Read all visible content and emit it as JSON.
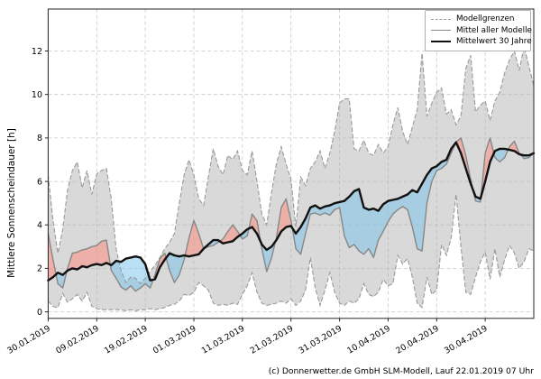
{
  "figure": {
    "ylabel": "Mittlere Sonnenscheindauer [h]",
    "caption": "(c) Donnerwetter.de GmbH SLM-Modell, Lauf 22.01.2019 07 Uhr",
    "legend": {
      "position": "upper right",
      "items": [
        {
          "label": "Modellgrenzen",
          "style": "dashed-gray"
        },
        {
          "label": "Mittel aller Modelle",
          "style": "solid-gray"
        },
        {
          "label": "Mittelwert 30 Jahre",
          "style": "solid-black-thick"
        }
      ]
    }
  },
  "colors": {
    "background": "#ffffff",
    "grid": "#c9c9c9",
    "band_fill": "rgba(179,179,179,0.5)",
    "below_normal_fill": "rgba(118,194,236,0.5)",
    "above_normal_fill": "rgba(255,138,122,0.52)",
    "bounds_line": "#999999",
    "model_mean_line": "#878787",
    "climate_mean_line": "#111111",
    "spine": "#262626",
    "legend_border": "#b0b0b0"
  },
  "chart_data": {
    "type": "line",
    "title": "",
    "xlabel": "",
    "ylabel": "Mittlere Sonnenscheindauer [h]",
    "grid": true,
    "legend_position": "upper right",
    "x_unit": "Tage ab 30.01.2019 (daily values)",
    "xlim": [
      0,
      100
    ],
    "ylim": [
      -0.3,
      13.93
    ],
    "y_ticks": [
      0,
      2,
      4,
      6,
      8,
      10,
      12
    ],
    "x_tick_days": [
      0,
      10,
      20,
      30,
      40,
      50,
      60,
      70,
      80,
      90
    ],
    "x_tick_labels": [
      "30.01.2019",
      "09.02.2019",
      "19.02.2019",
      "01.03.2019",
      "11.03.2019",
      "21.03.2019",
      "31.03.2019",
      "10.04.2019",
      "20.04.2019",
      "30.04.2019"
    ],
    "fills": [
      {
        "name": "Modellgrenzen-Band",
        "between": [
          "upper_bound",
          "lower_bound"
        ],
        "color_key": "band_fill"
      },
      {
        "name": "Modelle unter 30J-Mittel",
        "between": [
          "climate_mean_30y",
          "model_mean"
        ],
        "where": "model_mean < climate_mean_30y",
        "color_key": "below_normal_fill"
      },
      {
        "name": "Modelle über 30J-Mittel",
        "between": [
          "model_mean",
          "climate_mean_30y"
        ],
        "where": "model_mean > climate_mean_30y",
        "color_key": "above_normal_fill"
      }
    ],
    "series": [
      {
        "name": "Modellgrenzen (obere Grenze)",
        "role": "upper_bound",
        "line": "dashed",
        "values": [
          6.3,
          4.2,
          2.7,
          3.8,
          5.6,
          6.5,
          6.9,
          5.7,
          6.5,
          5.4,
          6.35,
          6.5,
          6.6,
          5.2,
          2.9,
          1.9,
          1.35,
          1.6,
          1.55,
          1.3,
          1.55,
          1.85,
          2.15,
          2.5,
          2.9,
          3.2,
          3.6,
          5.0,
          6.3,
          7.0,
          6.3,
          5.2,
          4.9,
          6.2,
          7.5,
          6.7,
          6.3,
          7.2,
          7.0,
          7.4,
          6.5,
          6.3,
          7.4,
          6.0,
          4.5,
          4.0,
          5.5,
          6.8,
          7.6,
          6.8,
          6.1,
          3.9,
          6.2,
          5.8,
          6.6,
          6.9,
          7.4,
          6.6,
          7.3,
          8.3,
          9.6,
          9.8,
          9.8,
          7.5,
          7.4,
          7.9,
          7.3,
          7.2,
          7.7,
          7.3,
          7.6,
          8.6,
          9.4,
          8.3,
          7.7,
          8.5,
          9.3,
          11.9,
          9.0,
          9.6,
          10.1,
          10.3,
          9.1,
          9.3,
          8.6,
          9.0,
          11.2,
          11.8,
          9.2,
          9.5,
          9.7,
          8.8,
          9.7,
          10.1,
          11.0,
          11.6,
          12.0,
          11.1,
          12.2,
          11.3,
          10.4
        ]
      },
      {
        "name": "Modellgrenzen (untere Grenze)",
        "role": "lower_bound",
        "line": "dashed",
        "values": [
          0.5,
          0.25,
          0.2,
          0.85,
          0.45,
          0.6,
          0.8,
          0.5,
          0.9,
          0.25,
          0.15,
          0.1,
          0.1,
          0.1,
          0.1,
          0.1,
          0.05,
          0.1,
          0.05,
          0.1,
          0.1,
          0.15,
          0.1,
          0.15,
          0.2,
          0.3,
          0.35,
          0.5,
          0.8,
          0.75,
          0.9,
          1.35,
          1.2,
          1.0,
          0.4,
          0.3,
          0.35,
          0.3,
          0.4,
          0.35,
          0.8,
          1.2,
          1.8,
          0.9,
          0.4,
          0.3,
          0.35,
          0.4,
          0.5,
          0.4,
          0.6,
          0.3,
          0.5,
          1.0,
          2.5,
          1.1,
          0.3,
          1.0,
          1.8,
          0.9,
          0.4,
          0.3,
          0.5,
          0.4,
          0.6,
          1.3,
          0.8,
          0.7,
          0.9,
          1.5,
          1.2,
          1.3,
          2.6,
          2.2,
          2.45,
          1.6,
          0.4,
          0.2,
          1.6,
          0.8,
          1.0,
          3.1,
          2.6,
          3.4,
          5.4,
          3.0,
          0.9,
          0.8,
          1.6,
          2.3,
          2.75,
          1.5,
          2.9,
          1.6,
          2.4,
          3.05,
          2.7,
          2.0,
          2.3,
          2.9,
          2.8
        ]
      },
      {
        "name": "Mittel aller Modelle",
        "role": "model_mean",
        "line": "solid-gray",
        "values": [
          3.6,
          2.4,
          1.3,
          1.1,
          2.0,
          2.7,
          2.75,
          2.85,
          2.9,
          3.0,
          3.05,
          3.25,
          3.3,
          1.9,
          1.55,
          1.15,
          1.0,
          1.2,
          0.95,
          1.1,
          1.3,
          1.1,
          1.7,
          2.45,
          2.7,
          1.9,
          1.35,
          1.7,
          2.4,
          3.4,
          4.2,
          3.6,
          2.9,
          3.0,
          3.05,
          3.2,
          3.35,
          3.7,
          4.0,
          3.7,
          3.35,
          3.5,
          4.5,
          4.2,
          2.9,
          1.85,
          2.5,
          3.4,
          4.8,
          5.2,
          4.2,
          2.9,
          2.65,
          3.6,
          4.5,
          4.55,
          4.45,
          4.55,
          4.45,
          4.7,
          4.8,
          3.5,
          2.95,
          3.1,
          2.8,
          2.65,
          2.9,
          2.5,
          3.3,
          3.7,
          4.15,
          4.5,
          4.7,
          4.85,
          4.7,
          3.9,
          2.9,
          2.8,
          5.0,
          6.0,
          6.5,
          6.6,
          6.8,
          7.3,
          7.8,
          8.0,
          7.2,
          6.1,
          5.1,
          5.05,
          7.3,
          8.0,
          7.1,
          6.9,
          7.1,
          7.6,
          7.85,
          7.3,
          7.05,
          7.1,
          7.3
        ]
      },
      {
        "name": "Mittelwert 30 Jahre",
        "role": "climate_mean_30y",
        "line": "solid-black-thick",
        "values": [
          1.45,
          1.6,
          1.8,
          1.7,
          1.9,
          2.0,
          1.95,
          2.1,
          2.05,
          2.15,
          2.2,
          2.15,
          2.25,
          2.15,
          2.35,
          2.3,
          2.45,
          2.5,
          2.55,
          2.5,
          2.2,
          1.45,
          1.5,
          2.05,
          2.4,
          2.7,
          2.6,
          2.55,
          2.6,
          2.55,
          2.6,
          2.65,
          2.9,
          3.1,
          3.3,
          3.3,
          3.15,
          3.2,
          3.25,
          3.45,
          3.6,
          3.8,
          3.9,
          3.6,
          3.1,
          2.85,
          3.0,
          3.3,
          3.7,
          3.9,
          3.95,
          3.6,
          3.9,
          4.3,
          4.8,
          4.9,
          4.75,
          4.85,
          4.9,
          5.0,
          5.05,
          5.1,
          5.3,
          5.55,
          5.65,
          4.8,
          4.7,
          4.75,
          4.65,
          4.95,
          5.1,
          5.15,
          5.2,
          5.3,
          5.4,
          5.6,
          5.5,
          5.9,
          6.3,
          6.6,
          6.7,
          6.9,
          7.0,
          7.5,
          7.8,
          7.3,
          6.6,
          5.9,
          5.3,
          5.2,
          6.0,
          6.9,
          7.4,
          7.5,
          7.5,
          7.45,
          7.4,
          7.25,
          7.2,
          7.2,
          7.3
        ]
      }
    ]
  }
}
